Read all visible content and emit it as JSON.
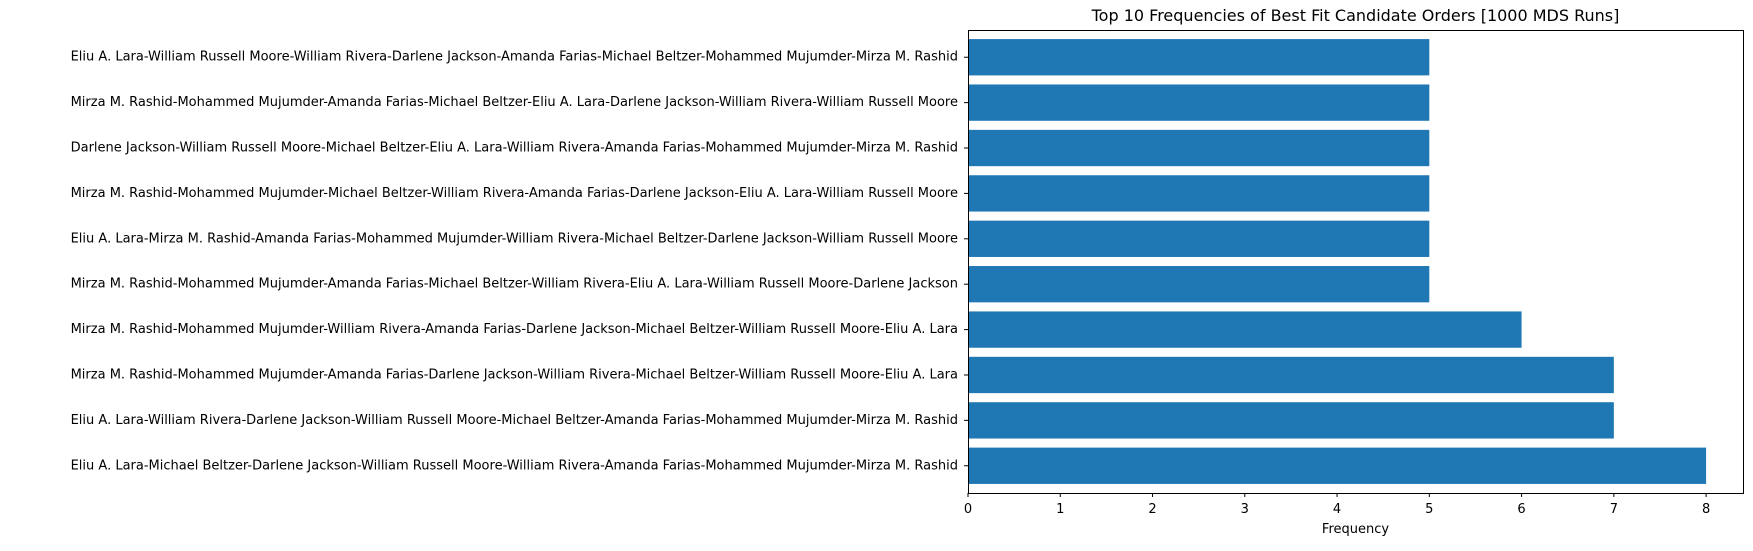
{
  "chart_data": {
    "type": "bar",
    "orientation": "horizontal",
    "title": "Top 10 Frequencies of Best Fit Candidate Orders [1000 MDS Runs]",
    "xlabel": "Frequency",
    "ylabel": "",
    "xlim": [
      0,
      8.4
    ],
    "xticks": [
      "0",
      "1",
      "2",
      "3",
      "4",
      "5",
      "6",
      "7",
      "8"
    ],
    "grid": false,
    "legend": "none",
    "bar_color": "#1f77b4",
    "categories": [
      "Eliu A. Lara-Michael Beltzer-Darlene Jackson-William Russell Moore-William Rivera-Amanda Farias-Mohammed Mujumder-Mirza M. Rashid",
      "Eliu A. Lara-William Rivera-Darlene Jackson-William Russell Moore-Michael Beltzer-Amanda Farias-Mohammed Mujumder-Mirza M. Rashid",
      "Mirza M. Rashid-Mohammed Mujumder-Amanda Farias-Darlene Jackson-William Rivera-Michael Beltzer-William Russell Moore-Eliu A. Lara",
      "Mirza M. Rashid-Mohammed Mujumder-William Rivera-Amanda Farias-Darlene Jackson-Michael Beltzer-William Russell Moore-Eliu A. Lara",
      "Mirza M. Rashid-Mohammed Mujumder-Amanda Farias-Michael Beltzer-William Rivera-Eliu A. Lara-William Russell Moore-Darlene Jackson",
      "Eliu A. Lara-Mirza M. Rashid-Amanda Farias-Mohammed Mujumder-William Rivera-Michael Beltzer-Darlene Jackson-William Russell Moore",
      "Mirza M. Rashid-Mohammed Mujumder-Michael Beltzer-William Rivera-Amanda Farias-Darlene Jackson-Eliu A. Lara-William Russell Moore",
      "Darlene Jackson-William Russell Moore-Michael Beltzer-Eliu A. Lara-William Rivera-Amanda Farias-Mohammed Mujumder-Mirza M. Rashid",
      "Mirza M. Rashid-Mohammed Mujumder-Amanda Farias-Michael Beltzer-Eliu A. Lara-Darlene Jackson-William Rivera-William Russell Moore",
      "Eliu A. Lara-William Russell Moore-William Rivera-Darlene Jackson-Amanda Farias-Michael Beltzer-Mohammed Mujumder-Mirza M. Rashid"
    ],
    "values": [
      8,
      7,
      7,
      6,
      5,
      5,
      5,
      5,
      5,
      5
    ]
  }
}
